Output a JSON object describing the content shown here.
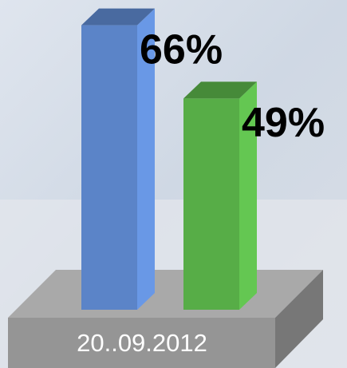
{
  "chart_data": {
    "type": "bar3d",
    "categories": [
      "20..09.2012"
    ],
    "series": [
      {
        "color": "#5b84c8",
        "values": [
          66
        ],
        "value_labels": [
          "66%"
        ]
      },
      {
        "color": "#57ad47",
        "values": [
          49
        ],
        "value_labels": [
          "49%"
        ]
      }
    ]
  }
}
